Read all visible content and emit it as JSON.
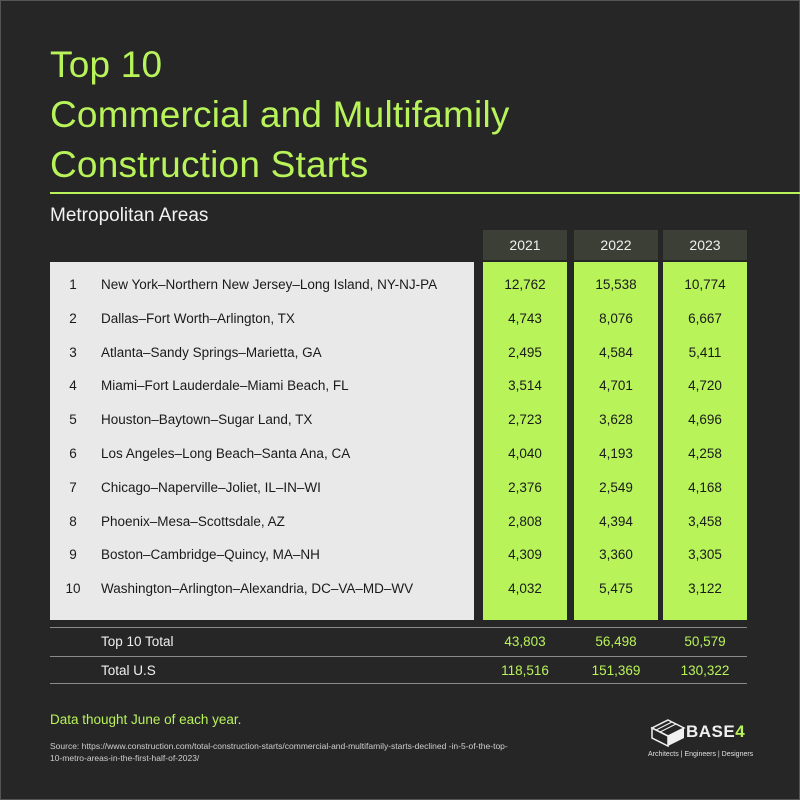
{
  "title_lines": [
    "Top 10",
    "Commercial and Multifamily",
    "Construction Starts"
  ],
  "subtitle": "Metropolitan Areas",
  "chart_data": {
    "type": "table",
    "title": "Top 10 Commercial and Multifamily Construction Starts",
    "subtitle": "Metropolitan Areas",
    "columns": [
      "2021",
      "2022",
      "2023"
    ],
    "rows": [
      {
        "rank": "1",
        "name": "New York–Northern New Jersey–Long Island, NY-NJ-PA",
        "values": [
          "12,762",
          "15,538",
          "10,774"
        ]
      },
      {
        "rank": "2",
        "name": "Dallas–Fort Worth–Arlington, TX",
        "values": [
          "4,743",
          "8,076",
          "6,667"
        ]
      },
      {
        "rank": "3",
        "name": "Atlanta–Sandy Springs–Marietta, GA",
        "values": [
          "2,495",
          "4,584",
          "5,411"
        ]
      },
      {
        "rank": "4",
        "name": "Miami–Fort Lauderdale–Miami Beach, FL",
        "values": [
          "3,514",
          "4,701",
          "4,720"
        ]
      },
      {
        "rank": "5",
        "name": "Houston–Baytown–Sugar Land, TX",
        "values": [
          "2,723",
          "3,628",
          "4,696"
        ]
      },
      {
        "rank": "6",
        "name": "Los Angeles–Long Beach–Santa Ana, CA",
        "values": [
          "4,040",
          "4,193",
          "4,258"
        ]
      },
      {
        "rank": "7",
        "name": "Chicago–Naperville–Joliet, IL–IN–WI",
        "values": [
          "2,376",
          "2,549",
          "4,168"
        ]
      },
      {
        "rank": "8",
        "name": "Phoenix–Mesa–Scottsdale, AZ",
        "values": [
          "2,808",
          "4,394",
          "3,458"
        ]
      },
      {
        "rank": "9",
        "name": "Boston–Cambridge–Quincy, MA–NH",
        "values": [
          "4,309",
          "3,360",
          "3,305"
        ]
      },
      {
        "rank": "10",
        "name": "Washington–Arlington–Alexandria, DC–VA–MD–WV",
        "values": [
          "4,032",
          "5,475",
          "3,122"
        ]
      }
    ],
    "totals": [
      {
        "label": "Top 10 Total",
        "values": [
          "43,803",
          "56,498",
          "50,579"
        ]
      },
      {
        "label": "Total U.S",
        "values": [
          "118,516",
          "151,369",
          "130,322"
        ]
      }
    ]
  },
  "note": "Data thought June of each year.",
  "source": "Source: https://www.construction.com/total-construction-starts/commercial-and-multifamily-starts-declined -in-5-of-the-top-10-metro-areas-in-the-first-half-of-2023/",
  "logo": {
    "name": "BASE",
    "number": "4",
    "tagline": "Architects | Engineers | Designers"
  },
  "colors": {
    "background": "#262626",
    "accent": "#b8f35a",
    "panel": "#e9e9e9",
    "header": "#3b3f36"
  }
}
